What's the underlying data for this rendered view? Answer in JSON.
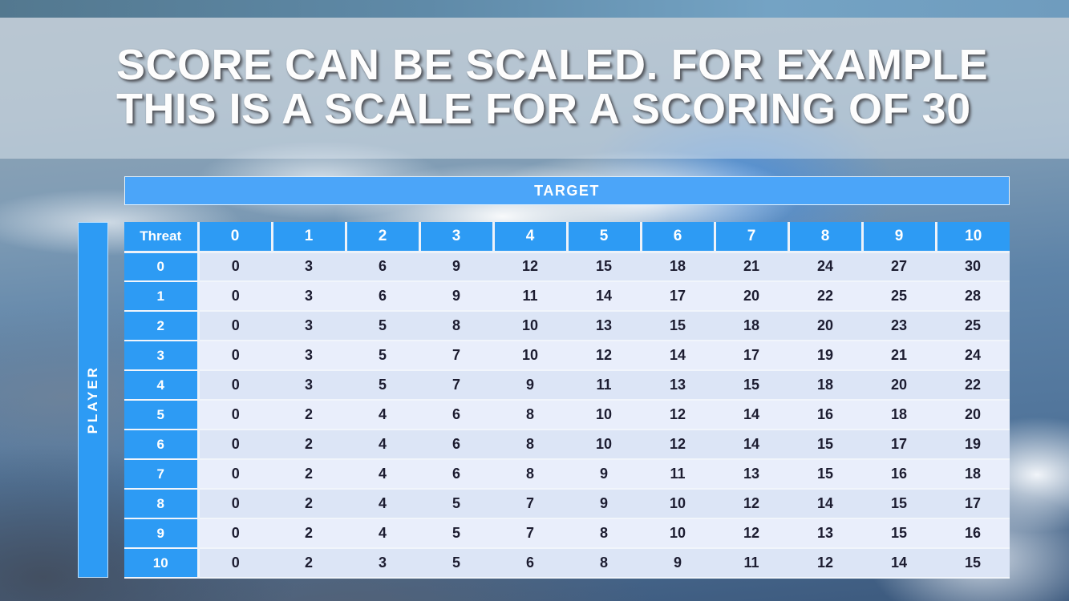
{
  "slide": {
    "title_line1": "SCORE CAN BE SCALED. FOR EXAMPLE",
    "title_line2": "THIS IS A SCALE FOR A SCORING OF 30"
  },
  "table": {
    "target_label": "TARGET",
    "player_label": "PLAYER",
    "corner_label": "Threat",
    "column_headers": [
      "0",
      "1",
      "2",
      "3",
      "4",
      "5",
      "6",
      "7",
      "8",
      "9",
      "10"
    ],
    "rows": [
      {
        "label": "0",
        "values": [
          0,
          3,
          6,
          9,
          12,
          15,
          18,
          21,
          24,
          27,
          30
        ]
      },
      {
        "label": "1",
        "values": [
          0,
          3,
          6,
          9,
          11,
          14,
          17,
          20,
          22,
          25,
          28
        ]
      },
      {
        "label": "2",
        "values": [
          0,
          3,
          5,
          8,
          10,
          13,
          15,
          18,
          20,
          23,
          25
        ]
      },
      {
        "label": "3",
        "values": [
          0,
          3,
          5,
          7,
          10,
          12,
          14,
          17,
          19,
          21,
          24
        ]
      },
      {
        "label": "4",
        "values": [
          0,
          3,
          5,
          7,
          9,
          11,
          13,
          15,
          18,
          20,
          22
        ]
      },
      {
        "label": "5",
        "values": [
          0,
          2,
          4,
          6,
          8,
          10,
          12,
          14,
          16,
          18,
          20
        ]
      },
      {
        "label": "6",
        "values": [
          0,
          2,
          4,
          6,
          8,
          10,
          12,
          14,
          15,
          17,
          19
        ]
      },
      {
        "label": "7",
        "values": [
          0,
          2,
          4,
          6,
          8,
          9,
          11,
          13,
          15,
          16,
          18
        ]
      },
      {
        "label": "8",
        "values": [
          0,
          2,
          4,
          5,
          7,
          9,
          10,
          12,
          14,
          15,
          17
        ]
      },
      {
        "label": "9",
        "values": [
          0,
          2,
          4,
          5,
          7,
          8,
          10,
          12,
          13,
          15,
          16
        ]
      },
      {
        "label": "10",
        "values": [
          0,
          2,
          3,
          5,
          6,
          8,
          9,
          11,
          12,
          14,
          15
        ]
      }
    ]
  },
  "colors": {
    "accent_blue": "#2d9bf4",
    "target_bar_blue": "#4ba5f9",
    "band_dark": "#dce5f6",
    "band_light": "#e9eefb",
    "cell_text": "#1c1c30"
  }
}
